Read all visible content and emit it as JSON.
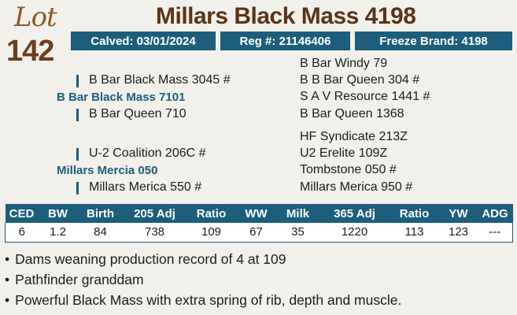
{
  "lot": {
    "word": "Lot",
    "number": "142"
  },
  "title": "Millars Black Mass 4198",
  "info": {
    "calved": "Calved: 03/01/2024",
    "reg": "Reg #: 21146406",
    "brand": "Freeze Brand: 4198"
  },
  "pedigree": {
    "sire": "B Bar Black Mass 7101",
    "sire_sire": "B Bar Black Mass 3045 #",
    "sire_dam": "B Bar Queen 710",
    "sss": "B Bar Windy 79",
    "ssd": "B B Bar Queen 304 #",
    "sds": "S A V Resource 1441 #",
    "sdd": "B Bar Queen 1368",
    "dam": "Millars Mercia 050",
    "dam_sire": "U-2 Coalition 206C #",
    "dam_dam": "Millars Merica 550 #",
    "dss": "HF Syndicate 213Z",
    "dsd": "U2 Erelite 109Z",
    "dds": "Tombstone 050 #",
    "ddd": "Millars Merica 950 #"
  },
  "epd": {
    "headers": [
      "CED",
      "BW",
      "Birth",
      "205 Adj",
      "Ratio",
      "WW",
      "Milk",
      "365 Adj",
      "Ratio",
      "YW",
      "ADG"
    ],
    "values": [
      "6",
      "1.2",
      "84",
      "738",
      "109",
      "67",
      "35",
      "1220",
      "113",
      "123",
      "---"
    ]
  },
  "notes": [
    "Dams weaning production record of 4 at 109",
    "Pathfinder granddam",
    "Powerful Black Mass with extra spring of rib, depth and muscle."
  ],
  "colors": {
    "accent": "#1c5e7c",
    "title": "#5a3318",
    "lot": "#8a5a2b",
    "background": "#f2f0ea"
  }
}
